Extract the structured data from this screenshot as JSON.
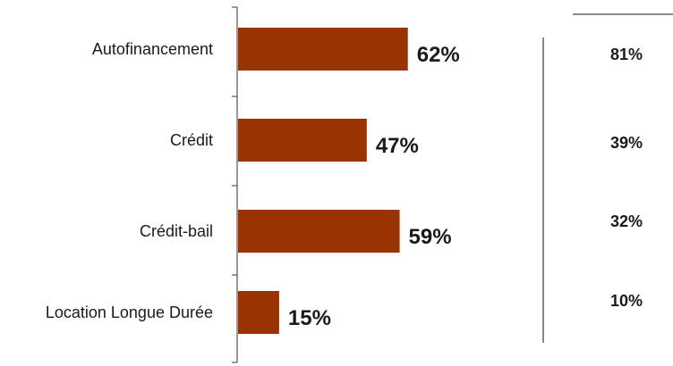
{
  "chart_data": {
    "type": "bar",
    "orientation": "horizontal",
    "categories": [
      "Autofinancement",
      "Crédit",
      "Crédit-bail",
      "Location Longue Durée"
    ],
    "values": [
      62,
      47,
      59,
      15
    ],
    "value_labels": [
      "62%",
      "47%",
      "59%",
      "15%"
    ],
    "xlim": [
      0,
      100
    ],
    "grid": false,
    "bar_color": "#993300",
    "side_column": {
      "values": [
        81,
        39,
        32,
        10
      ],
      "labels": [
        "81%",
        "39%",
        "32%",
        "10%"
      ]
    }
  }
}
